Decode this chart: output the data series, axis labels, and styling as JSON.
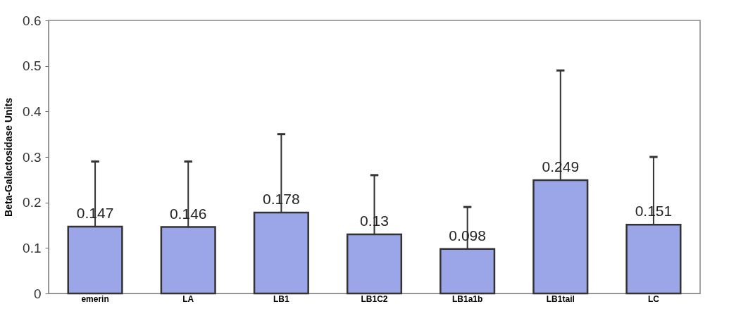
{
  "chart_data": {
    "type": "bar",
    "ylabel": "Beta-Galactosidase Units",
    "categories": [
      "emerin",
      "LA",
      "LB1",
      "LB1C2",
      "LB1a1b",
      "LB1tail",
      "LC"
    ],
    "values": [
      0.147,
      0.146,
      0.178,
      0.13,
      0.098,
      0.249,
      0.151
    ],
    "errors": [
      [
        0.147,
        0.29
      ],
      [
        0.146,
        0.29
      ],
      [
        0.178,
        0.35
      ],
      [
        0.13,
        0.26
      ],
      [
        0.098,
        0.19
      ],
      [
        0.249,
        0.49
      ],
      [
        0.151,
        0.3
      ]
    ],
    "color": "#9ba6e8",
    "ylim": [
      0,
      0.6
    ],
    "yticks": [
      0,
      0.1,
      0.2,
      0.3,
      0.4,
      0.5,
      0.6
    ],
    "grid": false,
    "data_labels": true
  }
}
